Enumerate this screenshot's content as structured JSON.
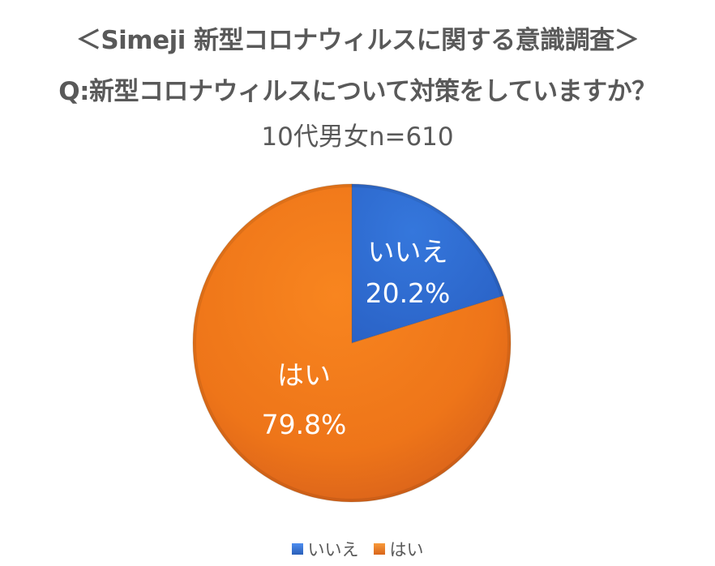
{
  "chart_data": {
    "type": "pie",
    "title": "＜Simeji 新型コロナウィルスに関する意識調査＞",
    "subtitle": "Q:新型コロナウィルスについて対策をしていますか？",
    "sample": "10代男女n=610",
    "categories": [
      "いいえ",
      "はい"
    ],
    "values": [
      20.2,
      79.8
    ],
    "unit": "%",
    "colors": [
      "#2f6ad0",
      "#f07a1b"
    ],
    "start_angle_deg": 0,
    "direction": "clockwise",
    "legend_position": "bottom",
    "data_labels": [
      {
        "name": "いいえ",
        "value": "20.2%"
      },
      {
        "name": "はい",
        "value": "79.8%"
      }
    ]
  },
  "header": {
    "title": "＜Simeji 新型コロナウィルスに関する意識調査＞",
    "question": "Q:新型コロナウィルスについて対策をしていますか？",
    "sample": "10代男女n=610"
  },
  "legend": {
    "items": [
      {
        "label": "いいえ",
        "color": "#2f6ad0"
      },
      {
        "label": "はい",
        "color": "#f07a1b"
      }
    ]
  }
}
